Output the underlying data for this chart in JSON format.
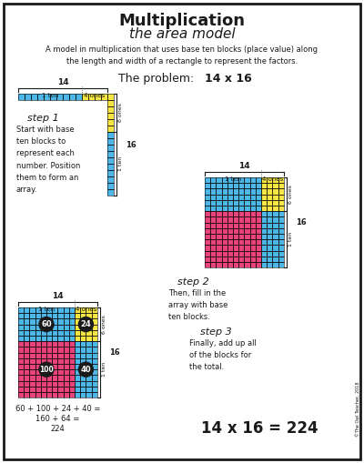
{
  "title1": "Multiplication",
  "title2": "the area model",
  "subtitle": "A model in multiplication that uses base ten blocks (place value) along\nthe length and width of a rectangle to represent the factors.",
  "problem_label": "The problem:  ",
  "problem_value": "14 x 16",
  "step1_title": "step 1",
  "step1_text": "Start with base\nten blocks to\nrepresent each\nnumber. Position\nthem to form an\narray.",
  "step2_title": "step 2",
  "step2_text": "Then, fill in the\narray with base\nten blocks.",
  "step3_title": "step 3",
  "step3_text": "Finally, add up all\nof the blocks for\nthe total.",
  "equation_line1": "60 + 100 + 24 + 40 =",
  "equation_line2": "160 + 64 =",
  "equation_line3": "224",
  "final_answer": "14 x 16 = 224",
  "color_blue": "#4DB8E8",
  "color_yellow": "#F5E642",
  "color_pink": "#E8447A",
  "color_bg": "#FFFFFF",
  "color_dark": "#1A1A1A"
}
